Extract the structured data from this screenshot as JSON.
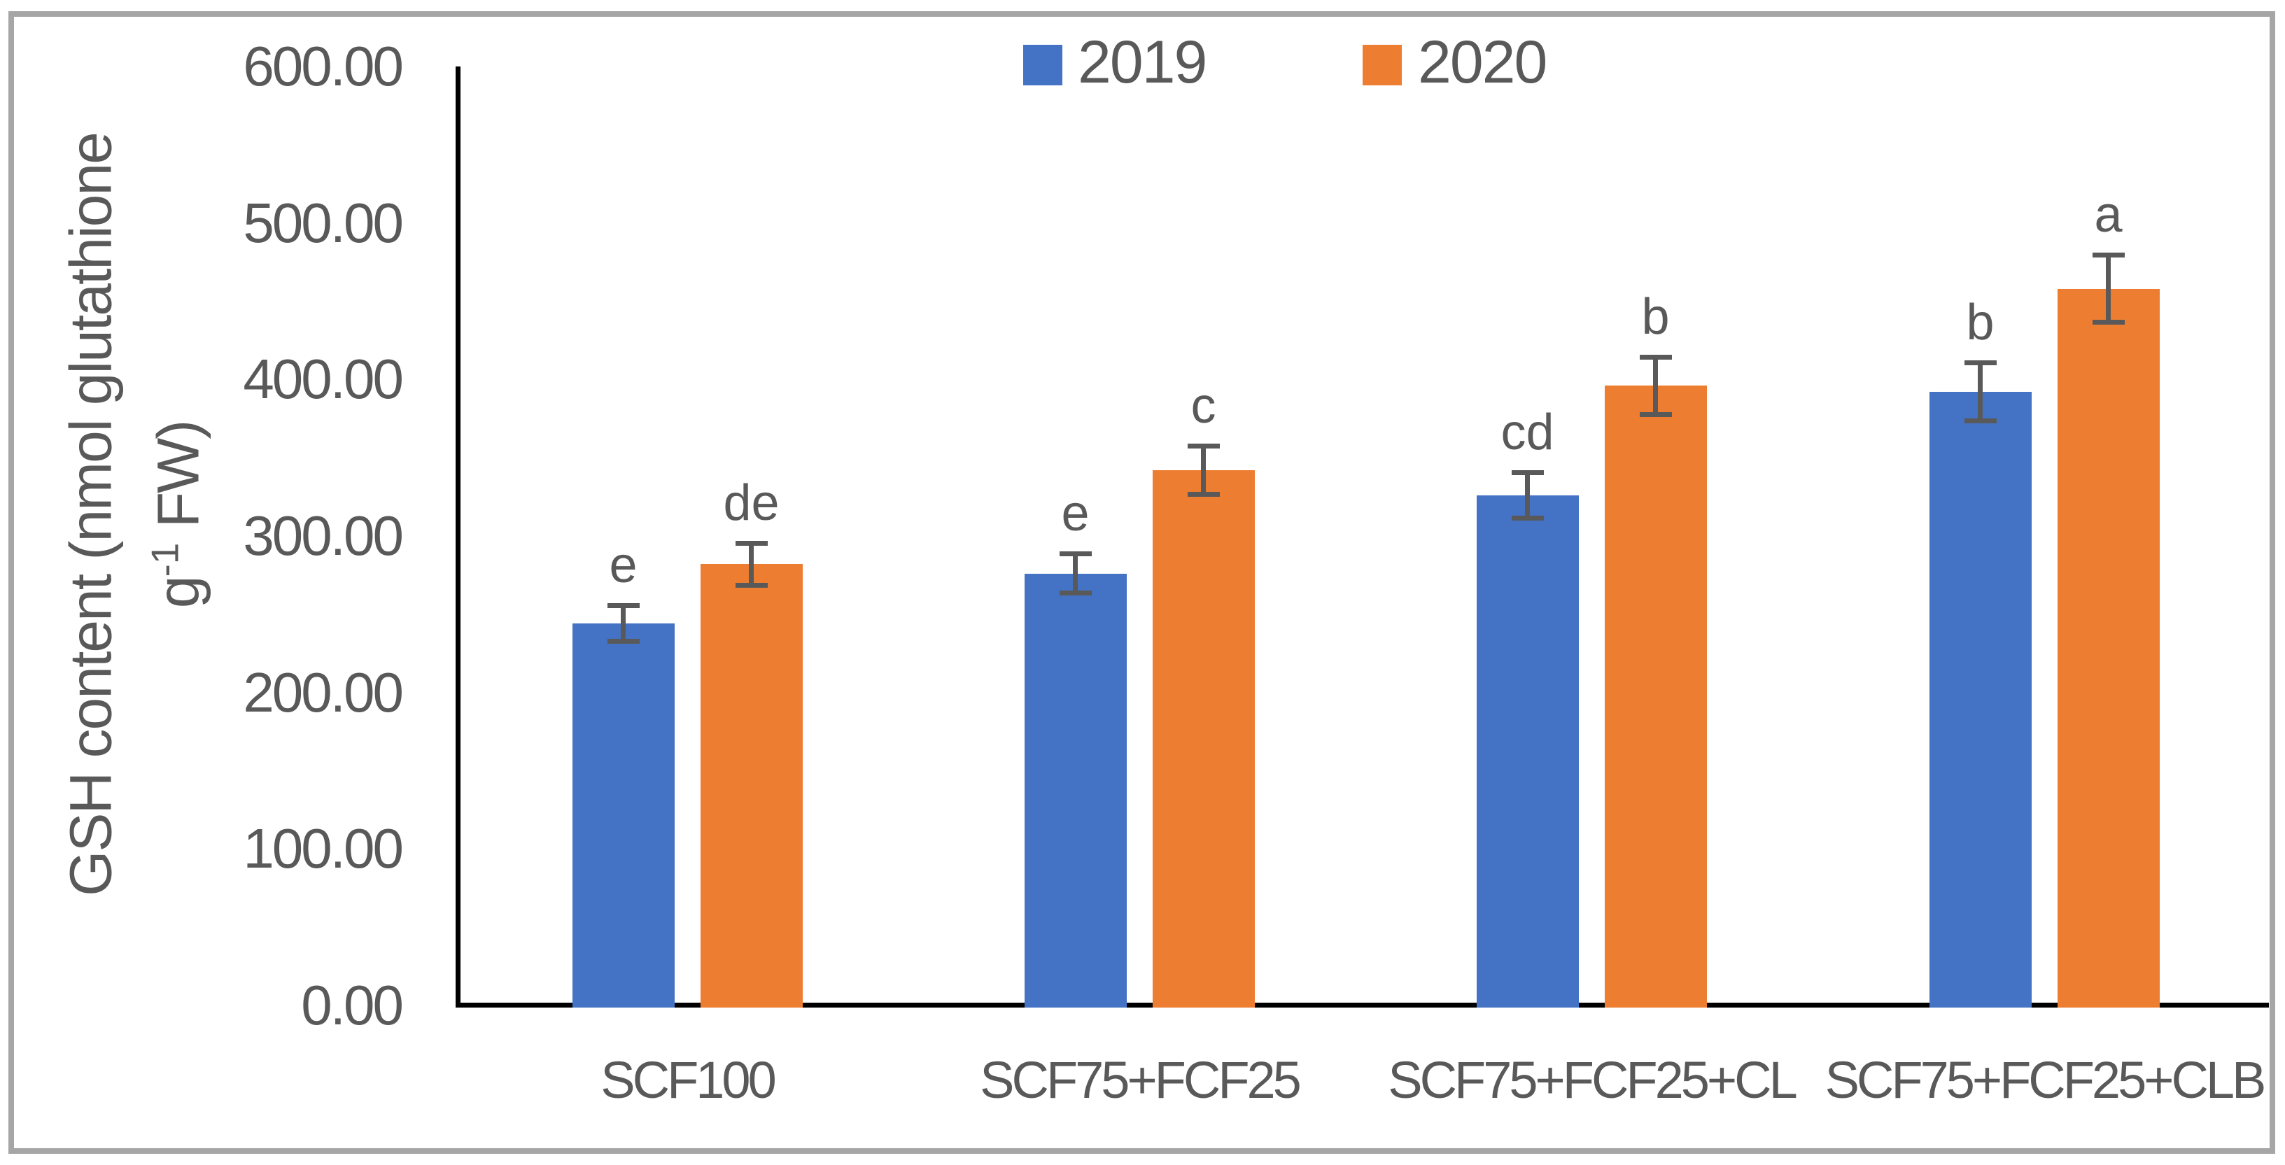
{
  "figure": {
    "background_color": "#ffffff",
    "border_color": "#a6a6a6",
    "axis_line_color": "#000000",
    "text_color": "#595959",
    "error_bar_color": "#595959"
  },
  "legend": [
    {
      "label": "2019",
      "color": "#4472C4"
    },
    {
      "label": "2020",
      "color": "#ED7D31"
    }
  ],
  "y_axis": {
    "title_line1": "GSH content (nmol glutathione",
    "title_line2_base": "g",
    "title_line2_sup": "-1",
    "title_line2_rest": " FW)",
    "ticks": [
      "600.00",
      "500.00",
      "400.00",
      "300.00",
      "200.00",
      "100.00",
      "0.00"
    ]
  },
  "chart_data": {
    "type": "bar",
    "title": "",
    "xlabel": "",
    "ylabel": "GSH content (nmol glutathione g-1 FW)",
    "ylim": [
      0,
      600
    ],
    "y_tick_step": 100,
    "grid": false,
    "legend_position": "top-center",
    "error_bars": true,
    "categories": [
      "SCF100",
      "SCF75+FCF25",
      "SCF75+FCF25+CL",
      "SCF75+FCF25+CLB"
    ],
    "series": [
      {
        "name": "2019",
        "color": "#4472C4",
        "values": [
          244,
          276,
          326,
          392
        ],
        "errors": [
          13,
          14,
          16,
          20
        ],
        "letters": [
          "e",
          "e",
          "cd",
          "b"
        ]
      },
      {
        "name": "2020",
        "color": "#ED7D31",
        "values": [
          282,
          342,
          396,
          458
        ],
        "errors": [
          15,
          17,
          20,
          23
        ],
        "letters": [
          "de",
          "c",
          "b",
          "a"
        ]
      }
    ]
  }
}
